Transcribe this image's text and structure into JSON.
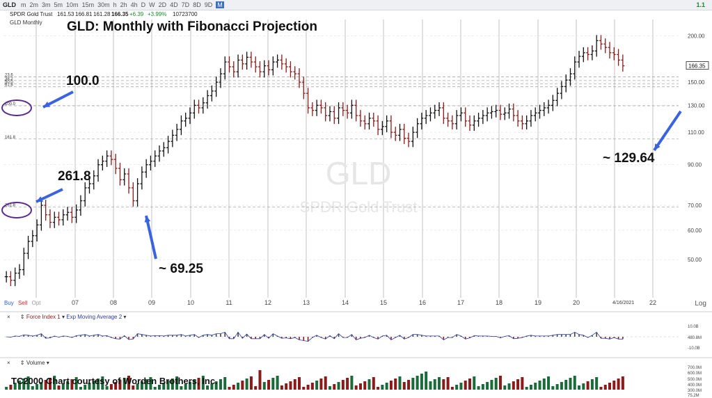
{
  "toolbar": {
    "symbol": "GLD",
    "timeframes": [
      "m",
      "2m",
      "3m",
      "5m",
      "10m",
      "15m",
      "30m",
      "h",
      "2h",
      "4h",
      "D",
      "W",
      "2D",
      "4D",
      "7D",
      "8D",
      "9D",
      "M"
    ],
    "active_timeframe": "M",
    "right_status": "1.1"
  },
  "quote": {
    "name": "SPDR Gold Trust",
    "open": "161.53",
    "high": "166.81",
    "low": "161.28",
    "close": "166.35",
    "change": "+6.39",
    "change_pct": "+3.99%",
    "volume": "10723700"
  },
  "chart_label": "GLD Monthly",
  "title": "GLD:  Monthly with Fibonacci Projection",
  "watermark": {
    "symbol": "GLD",
    "name": "SPDR Gold Trust"
  },
  "annotations": {
    "fib100": "100.0",
    "fib2618": "261.8",
    "low": "~ 69.25",
    "target": "~ 129.64"
  },
  "fib_labels": [
    {
      "text": "23.6",
      "price": 155.0
    },
    {
      "text": "38.2",
      "price": 151.5
    },
    {
      "text": "50.0",
      "price": 148.6
    },
    {
      "text": "61.8",
      "price": 145.8
    },
    {
      "text": "100.0",
      "price": 129.64
    },
    {
      "text": "161.8",
      "price": 105.5
    },
    {
      "text": "261.8",
      "price": 69.25
    }
  ],
  "price_tag": "166.35",
  "date_tag": "4/16/2021",
  "log_label": "Log",
  "buy_label": "Buy",
  "sell_label": "Sell",
  "opt_label": "Opt",
  "force_panel": {
    "label": "Force Index 1",
    "ema": "Exp Moving Average 2",
    "ticks": [
      "10.0B",
      "480.8M",
      "-10.0B"
    ]
  },
  "volume_panel": {
    "label": "Volume",
    "ticks": [
      "700.0M",
      "600.0M",
      "500.0M",
      "400.0M",
      "300.0M",
      "75.2M"
    ]
  },
  "credit": "TC2000 Chart courtesy of Worden Brothers, Inc.",
  "colors": {
    "up": "#111111",
    "down": "#8b1a1a",
    "arrow": "#3a63e0",
    "circle": "#5a2a8c",
    "grid": "#c8c8c8"
  },
  "chart_data": {
    "type": "ohlc",
    "scale": "log",
    "ylim": [
      40,
      210
    ],
    "y_ticks": [
      50,
      60,
      70,
      90,
      110,
      130,
      150,
      200
    ],
    "x_ticks": [
      "07",
      "08",
      "09",
      "10",
      "11",
      "12",
      "13",
      "14",
      "15",
      "16",
      "17",
      "18",
      "19",
      "20",
      "22"
    ],
    "closes": [
      45,
      44,
      46,
      47,
      52,
      56,
      58,
      62,
      70,
      66,
      63,
      65,
      64,
      66,
      67,
      65,
      68,
      72,
      78,
      80,
      84,
      90,
      92,
      95,
      93,
      88,
      82,
      85,
      78,
      72,
      80,
      86,
      90,
      92,
      95,
      98,
      100,
      104,
      108,
      112,
      118,
      120,
      124,
      130,
      128,
      132,
      138,
      142,
      150,
      158,
      170,
      165,
      160,
      172,
      168,
      175,
      170,
      165,
      160,
      166,
      162,
      170,
      172,
      168,
      165,
      160,
      158,
      150,
      140,
      128,
      126,
      130,
      128,
      122,
      125,
      120,
      128,
      126,
      124,
      130,
      122,
      118,
      116,
      120,
      118,
      112,
      114,
      118,
      110,
      108,
      112,
      106,
      104,
      110,
      116,
      120,
      122,
      124,
      126,
      128,
      120,
      118,
      116,
      122,
      124,
      118,
      115,
      118,
      120,
      122,
      124,
      125,
      126,
      123,
      124,
      127,
      122,
      118,
      116,
      118,
      122,
      124,
      126,
      128,
      130,
      134,
      140,
      146,
      152,
      158,
      170,
      176,
      180,
      178,
      182,
      194,
      190,
      186,
      180,
      178,
      172,
      166
    ]
  }
}
